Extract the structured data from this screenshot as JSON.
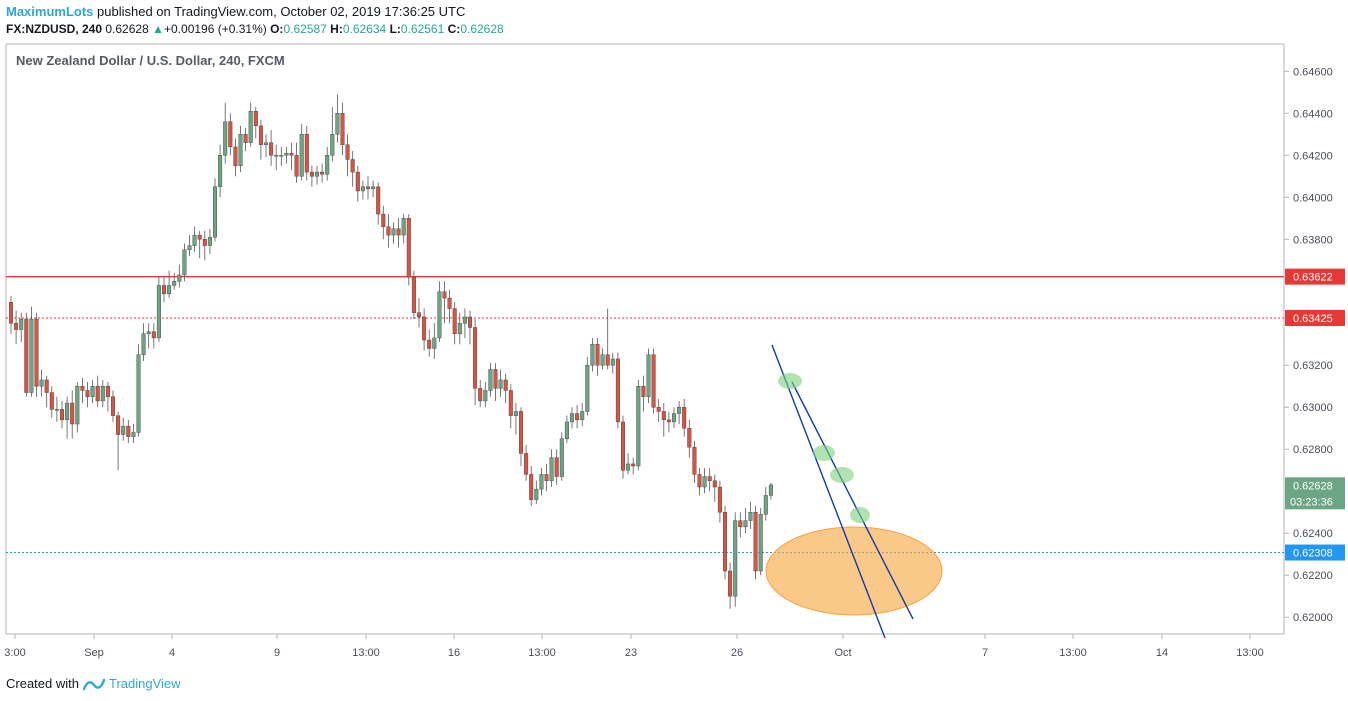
{
  "header": {
    "author": "MaximumLots",
    "published": "published on TradingView.com, October 02, 2019 17:36:25 UTC",
    "symbol": "FX:NZDUSD, 240",
    "last": "0.62628",
    "arrow": "▲",
    "change": "+0.00196 (+0.31%)",
    "o_label": "O:",
    "o_value": "0.62587",
    "h_label": "H:",
    "h_value": "0.62634",
    "l_label": "L:",
    "l_value": "0.62561",
    "c_label": "C:",
    "c_value": "0.62628"
  },
  "footer": {
    "created": "Created with",
    "brand": "TradingView",
    "logo_icon": "tradingview-logo-icon"
  },
  "colors": {
    "bull": "#6ba583",
    "bear": "#d75442",
    "resistance": "#e53935",
    "support": "#2196f3",
    "channel": "#0d3fa6",
    "zone": "#f6a43a",
    "touch": "#7bd17b"
  },
  "chart_data": {
    "type": "candlestick",
    "title": "New Zealand Dollar / U.S. Dollar, 240, FXCM",
    "y_ticks": [
      "0.64600",
      "0.64400",
      "0.64200",
      "0.64000",
      "0.63800",
      "0.63200",
      "0.63000",
      "0.62800",
      "0.62400",
      "0.62200",
      "0.62000"
    ],
    "x_ticks": [
      "3:00",
      "Sep",
      "4",
      "9",
      "13:00",
      "16",
      "13:00",
      "23",
      "26",
      "Oct",
      "7",
      "13:00",
      "14",
      "13:00"
    ],
    "ylim": [
      0.6192,
      0.6473
    ],
    "price_labels": [
      {
        "value": 0.63622,
        "text": "0.63622",
        "color": "#e53935"
      },
      {
        "value": 0.63425,
        "text": "0.63425",
        "color": "#e53935"
      },
      {
        "value": 0.62308,
        "text": "0.62308",
        "color": "#2196f3"
      },
      {
        "value": 0.62628,
        "text": "0.62628",
        "color": "#6ba583"
      }
    ],
    "countdown": "03:23:36",
    "levels": [
      {
        "name": "resistance",
        "value": 0.63622,
        "style": "solid"
      },
      {
        "name": "resistance-2",
        "value": 0.63425,
        "style": "dotted"
      },
      {
        "name": "support",
        "value": 0.62308,
        "style": "dotted"
      }
    ],
    "candles": [
      [
        0.635,
        0.634,
        0.6353,
        0.6335
      ],
      [
        0.634,
        0.6337,
        0.6346,
        0.633
      ],
      [
        0.6337,
        0.6342,
        0.6345,
        0.6331
      ],
      [
        0.6342,
        0.6307,
        0.6345,
        0.6305
      ],
      [
        0.6307,
        0.6342,
        0.6348,
        0.6305
      ],
      [
        0.6342,
        0.631,
        0.6345,
        0.6305
      ],
      [
        0.631,
        0.6313,
        0.6318,
        0.6305
      ],
      [
        0.6313,
        0.6307,
        0.6315,
        0.63
      ],
      [
        0.6307,
        0.6299,
        0.631,
        0.6295
      ],
      [
        0.6299,
        0.6299,
        0.6305,
        0.6293
      ],
      [
        0.6299,
        0.6294,
        0.6303,
        0.629
      ],
      [
        0.6294,
        0.6302,
        0.6305,
        0.6285
      ],
      [
        0.6302,
        0.6292,
        0.6308,
        0.6285
      ],
      [
        0.6292,
        0.631,
        0.6312,
        0.6288
      ],
      [
        0.631,
        0.6308,
        0.6314,
        0.6302
      ],
      [
        0.6308,
        0.6305,
        0.6312,
        0.63
      ],
      [
        0.6305,
        0.631,
        0.6313,
        0.6302
      ],
      [
        0.631,
        0.6303,
        0.6315,
        0.63
      ],
      [
        0.6303,
        0.631,
        0.6313,
        0.63
      ],
      [
        0.631,
        0.6305,
        0.6312,
        0.6298
      ],
      [
        0.6305,
        0.6296,
        0.6308,
        0.6293
      ],
      [
        0.6296,
        0.6287,
        0.6298,
        0.627
      ],
      [
        0.6287,
        0.6291,
        0.6295,
        0.6284
      ],
      [
        0.6291,
        0.6286,
        0.6294,
        0.6283
      ],
      [
        0.6286,
        0.6288,
        0.6292,
        0.6283
      ],
      [
        0.6288,
        0.6325,
        0.633,
        0.6286
      ],
      [
        0.6325,
        0.6335,
        0.634,
        0.6322
      ],
      [
        0.6335,
        0.6336,
        0.634,
        0.6328
      ],
      [
        0.6336,
        0.6333,
        0.634,
        0.6328
      ],
      [
        0.6333,
        0.6358,
        0.6362,
        0.6331
      ],
      [
        0.6358,
        0.6354,
        0.6362,
        0.635
      ],
      [
        0.6354,
        0.6358,
        0.6365,
        0.6352
      ],
      [
        0.6358,
        0.636,
        0.6364,
        0.6356
      ],
      [
        0.636,
        0.6363,
        0.6368,
        0.6357
      ],
      [
        0.6363,
        0.6375,
        0.6378,
        0.636
      ],
      [
        0.6375,
        0.6377,
        0.6382,
        0.6372
      ],
      [
        0.6377,
        0.6382,
        0.6386,
        0.6374
      ],
      [
        0.6382,
        0.638,
        0.6384,
        0.6371
      ],
      [
        0.638,
        0.6377,
        0.6384,
        0.637
      ],
      [
        0.6377,
        0.6381,
        0.6385,
        0.6373
      ],
      [
        0.6381,
        0.6405,
        0.6409,
        0.6379
      ],
      [
        0.6405,
        0.642,
        0.6425,
        0.64
      ],
      [
        0.642,
        0.6436,
        0.6445,
        0.6416
      ],
      [
        0.6436,
        0.6424,
        0.644,
        0.642
      ],
      [
        0.6424,
        0.6415,
        0.6428,
        0.641
      ],
      [
        0.6415,
        0.643,
        0.6434,
        0.6412
      ],
      [
        0.643,
        0.6426,
        0.6433,
        0.6422
      ],
      [
        0.6426,
        0.6441,
        0.6445,
        0.6424
      ],
      [
        0.6441,
        0.6434,
        0.6443,
        0.6428
      ],
      [
        0.6434,
        0.6425,
        0.6437,
        0.6418
      ],
      [
        0.6425,
        0.6426,
        0.643,
        0.6419
      ],
      [
        0.6426,
        0.642,
        0.6432,
        0.6415
      ],
      [
        0.642,
        0.642,
        0.6425,
        0.6413
      ],
      [
        0.642,
        0.642,
        0.6424,
        0.6415
      ],
      [
        0.642,
        0.6421,
        0.6424,
        0.6416
      ],
      [
        0.6421,
        0.642,
        0.6426,
        0.6413
      ],
      [
        0.642,
        0.641,
        0.6426,
        0.6407
      ],
      [
        0.641,
        0.643,
        0.6435,
        0.6408
      ],
      [
        0.643,
        0.6412,
        0.6434,
        0.6408
      ],
      [
        0.6412,
        0.641,
        0.6415,
        0.6405
      ],
      [
        0.641,
        0.6412,
        0.6415,
        0.6406
      ],
      [
        0.6412,
        0.6411,
        0.6416,
        0.6407
      ],
      [
        0.6411,
        0.642,
        0.6424,
        0.6408
      ],
      [
        0.642,
        0.643,
        0.6443,
        0.6417
      ],
      [
        0.643,
        0.644,
        0.6449,
        0.6426
      ],
      [
        0.644,
        0.6425,
        0.6445,
        0.642
      ],
      [
        0.6425,
        0.6418,
        0.643,
        0.641
      ],
      [
        0.6418,
        0.6412,
        0.6422,
        0.6405
      ],
      [
        0.6412,
        0.6403,
        0.6415,
        0.6398
      ],
      [
        0.6403,
        0.6405,
        0.6408,
        0.6399
      ],
      [
        0.6405,
        0.6404,
        0.641,
        0.6399
      ],
      [
        0.6404,
        0.6405,
        0.6408,
        0.64
      ],
      [
        0.6405,
        0.6392,
        0.6407,
        0.6387
      ],
      [
        0.6392,
        0.6386,
        0.6396,
        0.638
      ],
      [
        0.6386,
        0.6382,
        0.6392,
        0.6376
      ],
      [
        0.6382,
        0.6385,
        0.6388,
        0.6378
      ],
      [
        0.6385,
        0.6382,
        0.639,
        0.6376
      ],
      [
        0.6382,
        0.639,
        0.6392,
        0.6378
      ],
      [
        0.639,
        0.6362,
        0.6392,
        0.6358
      ],
      [
        0.6362,
        0.6345,
        0.6365,
        0.6342
      ],
      [
        0.6345,
        0.6343,
        0.6352,
        0.6338
      ],
      [
        0.6343,
        0.6332,
        0.6347,
        0.6327
      ],
      [
        0.6332,
        0.6328,
        0.6337,
        0.6324
      ],
      [
        0.6328,
        0.6333,
        0.634,
        0.6323
      ],
      [
        0.6333,
        0.6355,
        0.636,
        0.6331
      ],
      [
        0.6355,
        0.6352,
        0.636,
        0.634
      ],
      [
        0.6352,
        0.6347,
        0.6356,
        0.634
      ],
      [
        0.6347,
        0.6335,
        0.635,
        0.633
      ],
      [
        0.6335,
        0.634,
        0.6345,
        0.633
      ],
      [
        0.634,
        0.6343,
        0.6347,
        0.6333
      ],
      [
        0.6343,
        0.6338,
        0.6346,
        0.633
      ],
      [
        0.6338,
        0.6309,
        0.6342,
        0.6301
      ],
      [
        0.6309,
        0.6303,
        0.6313,
        0.63
      ],
      [
        0.6303,
        0.6308,
        0.6312,
        0.63
      ],
      [
        0.6308,
        0.6318,
        0.6321,
        0.6305
      ],
      [
        0.6318,
        0.6309,
        0.6321,
        0.6303
      ],
      [
        0.6309,
        0.6313,
        0.6318,
        0.6305
      ],
      [
        0.6313,
        0.6308,
        0.6316,
        0.6302
      ],
      [
        0.6308,
        0.6296,
        0.6311,
        0.629
      ],
      [
        0.6296,
        0.6298,
        0.6302,
        0.6287
      ],
      [
        0.6298,
        0.6278,
        0.63,
        0.6272
      ],
      [
        0.6278,
        0.6268,
        0.6282,
        0.6265
      ],
      [
        0.6268,
        0.6256,
        0.6272,
        0.6253
      ],
      [
        0.6256,
        0.6261,
        0.6265,
        0.6254
      ],
      [
        0.6261,
        0.6268,
        0.6271,
        0.6258
      ],
      [
        0.6268,
        0.6265,
        0.6273,
        0.626
      ],
      [
        0.6265,
        0.6276,
        0.628,
        0.6262
      ],
      [
        0.6276,
        0.6267,
        0.628,
        0.6263
      ],
      [
        0.6267,
        0.6285,
        0.6288,
        0.6265
      ],
      [
        0.6285,
        0.6293,
        0.6296,
        0.6283
      ],
      [
        0.6293,
        0.6297,
        0.63,
        0.629
      ],
      [
        0.6297,
        0.6294,
        0.6301,
        0.629
      ],
      [
        0.6294,
        0.6298,
        0.6302,
        0.6291
      ],
      [
        0.6298,
        0.632,
        0.6324,
        0.6296
      ],
      [
        0.632,
        0.633,
        0.6333,
        0.6317
      ],
      [
        0.633,
        0.632,
        0.6333,
        0.6315
      ],
      [
        0.632,
        0.6325,
        0.6328,
        0.6318
      ],
      [
        0.6325,
        0.632,
        0.6347,
        0.6318
      ],
      [
        0.632,
        0.6323,
        0.6326,
        0.6316
      ],
      [
        0.6323,
        0.6293,
        0.6326,
        0.629
      ],
      [
        0.6293,
        0.627,
        0.6296,
        0.6266
      ],
      [
        0.627,
        0.6273,
        0.6278,
        0.6268
      ],
      [
        0.6273,
        0.6272,
        0.6276,
        0.6268
      ],
      [
        0.6272,
        0.631,
        0.6313,
        0.627
      ],
      [
        0.631,
        0.6305,
        0.6315,
        0.6298
      ],
      [
        0.6305,
        0.6325,
        0.6328,
        0.6302
      ],
      [
        0.6325,
        0.63,
        0.6328,
        0.6297
      ],
      [
        0.63,
        0.6298,
        0.6304,
        0.6293
      ],
      [
        0.6298,
        0.6294,
        0.6302,
        0.6286
      ],
      [
        0.6294,
        0.6293,
        0.6298,
        0.6288
      ],
      [
        0.6293,
        0.6297,
        0.63,
        0.629
      ],
      [
        0.6297,
        0.63,
        0.6303,
        0.6292
      ],
      [
        0.63,
        0.629,
        0.6304,
        0.6286
      ],
      [
        0.629,
        0.6281,
        0.6294,
        0.6276
      ],
      [
        0.6281,
        0.6268,
        0.6284,
        0.6264
      ],
      [
        0.6268,
        0.6262,
        0.6271,
        0.6258
      ],
      [
        0.6262,
        0.6267,
        0.6271,
        0.6259
      ],
      [
        0.6267,
        0.6265,
        0.6271,
        0.626
      ],
      [
        0.6265,
        0.6262,
        0.6268,
        0.6255
      ],
      [
        0.6262,
        0.625,
        0.6265,
        0.6245
      ],
      [
        0.625,
        0.6222,
        0.6253,
        0.6218
      ],
      [
        0.6222,
        0.621,
        0.6226,
        0.6204
      ],
      [
        0.621,
        0.6246,
        0.625,
        0.6205
      ],
      [
        0.6246,
        0.6243,
        0.625,
        0.6238
      ],
      [
        0.6243,
        0.6246,
        0.6252,
        0.624
      ],
      [
        0.6246,
        0.625,
        0.6255,
        0.6242
      ],
      [
        0.625,
        0.6222,
        0.6253,
        0.6218
      ],
      [
        0.6222,
        0.6249,
        0.6252,
        0.622
      ],
      [
        0.6249,
        0.6258,
        0.6262,
        0.6246
      ],
      [
        0.6258,
        0.6263,
        0.6264,
        0.6256
      ]
    ]
  }
}
